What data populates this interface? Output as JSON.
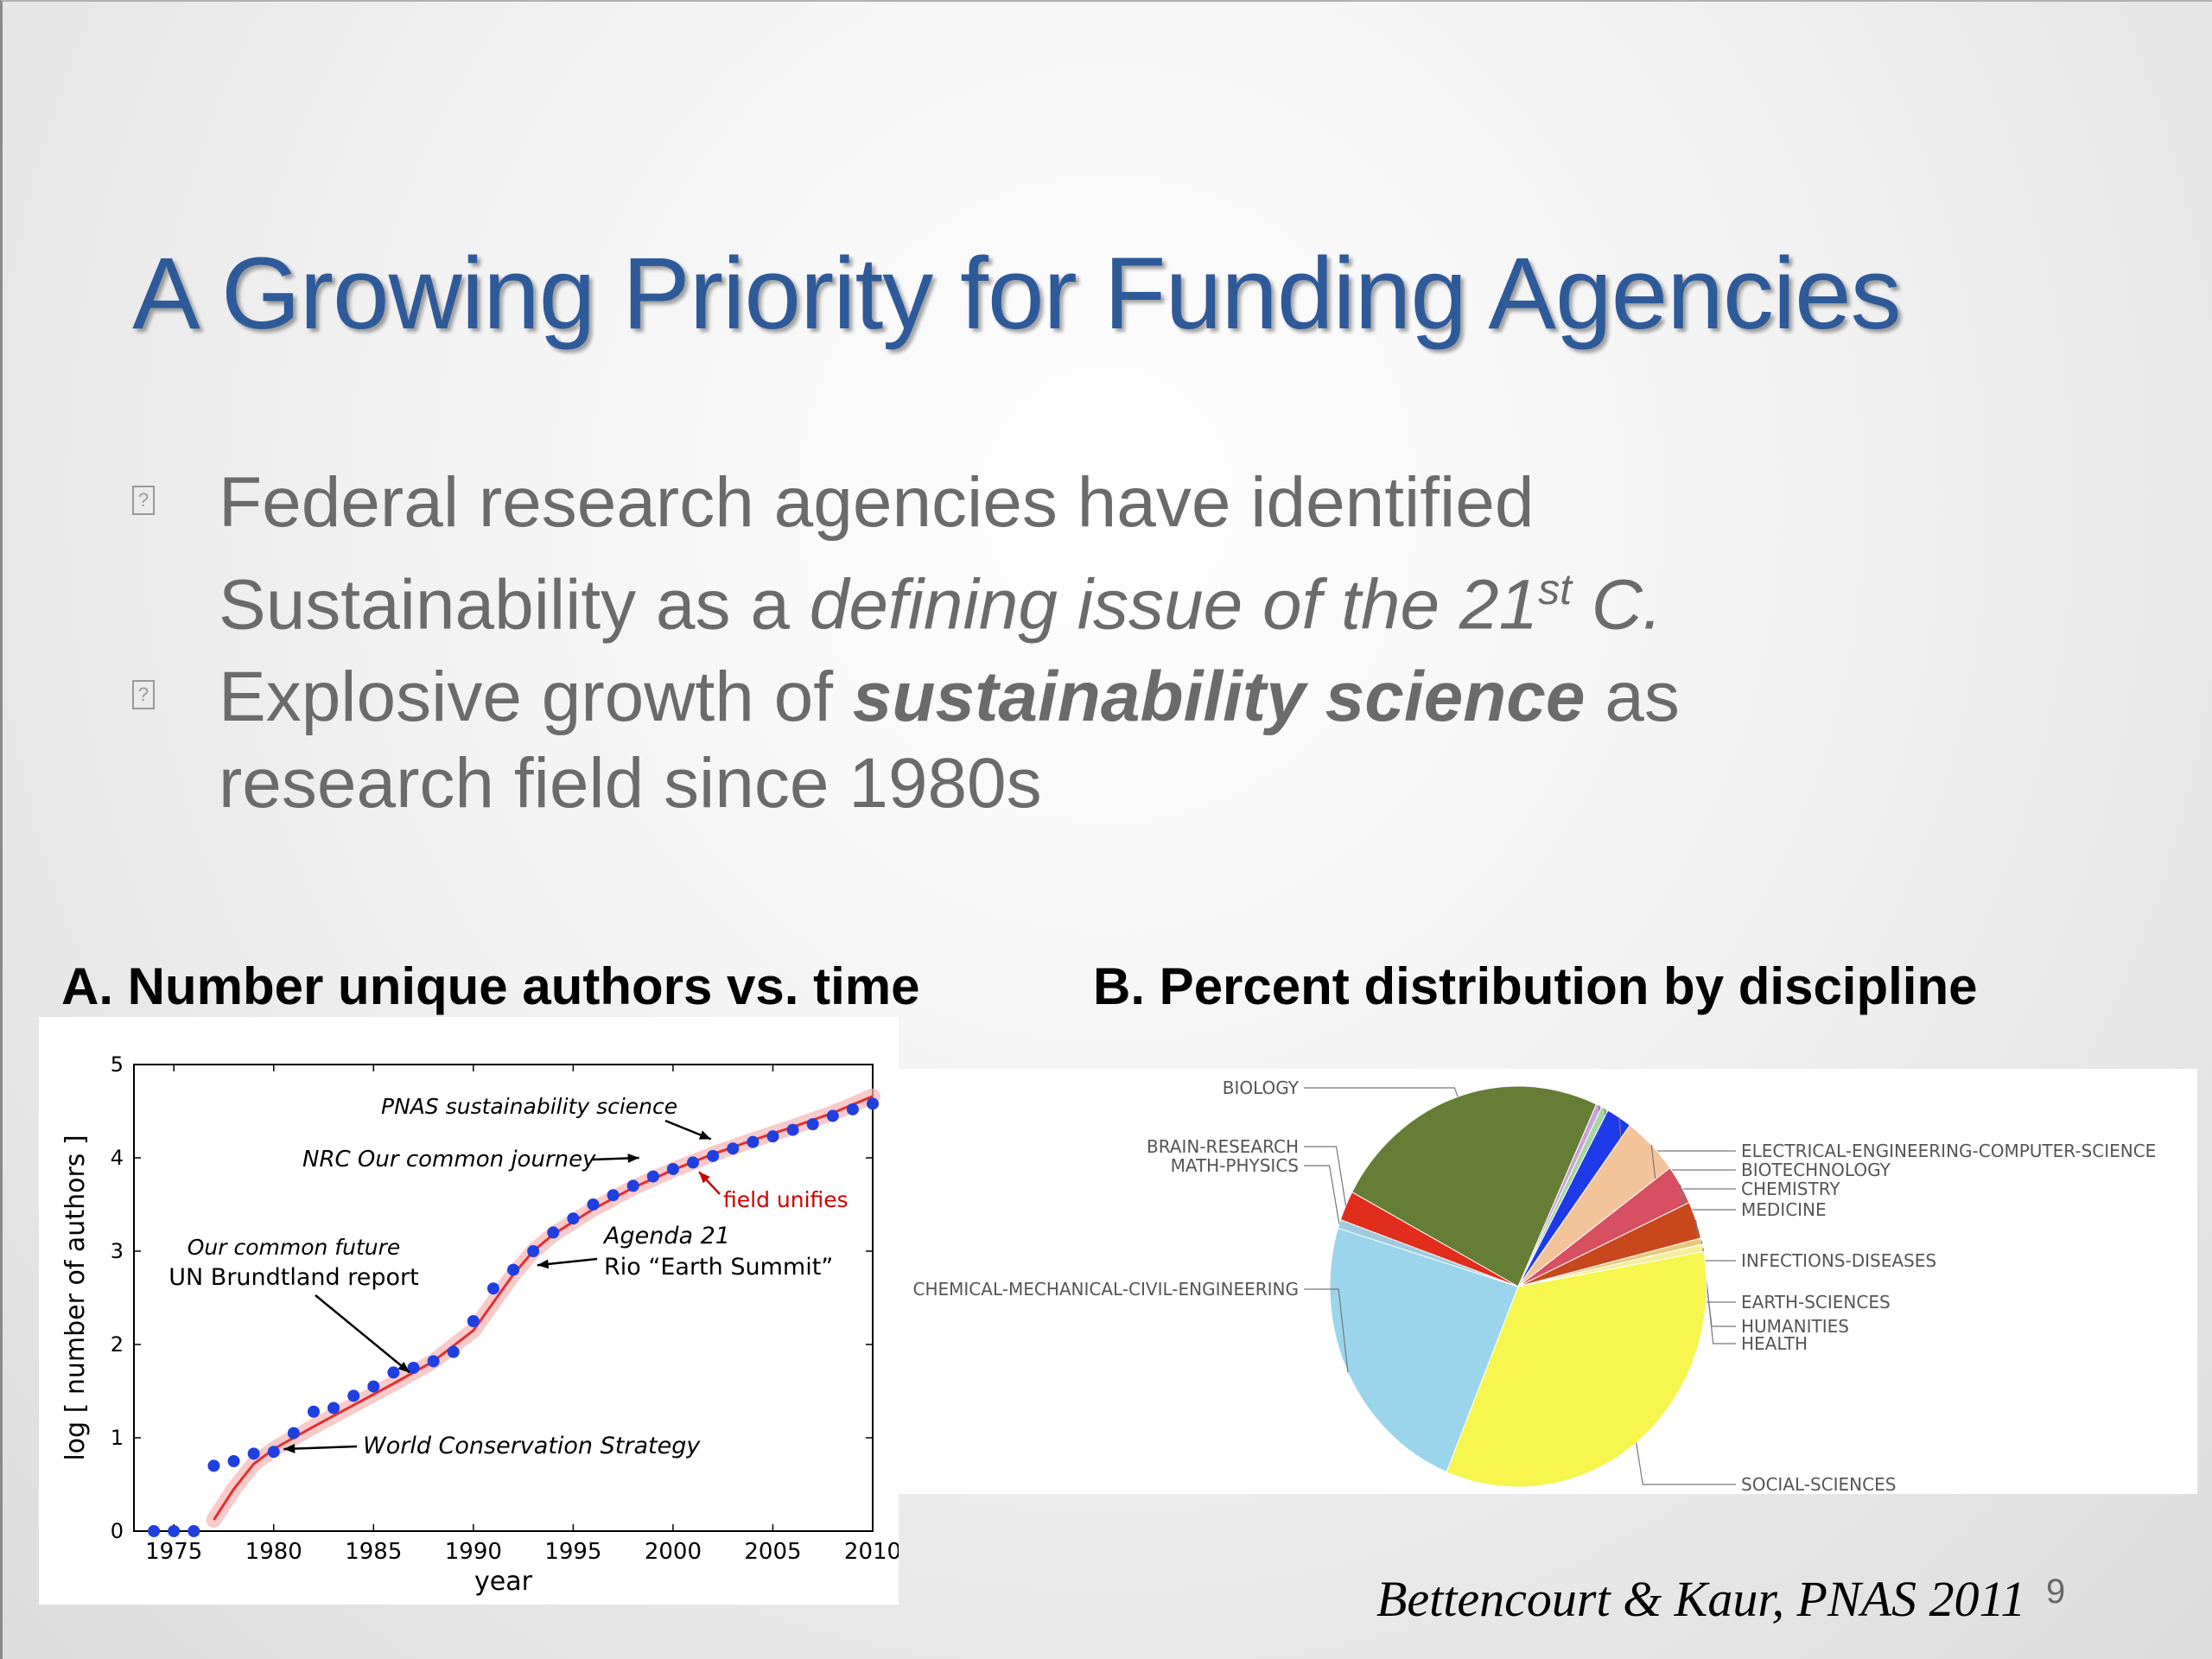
{
  "slide": {
    "title": "A Growing Priority for Funding Agencies",
    "bullets": [
      {
        "marker_icon": "unknown-glyph-icon",
        "line1": "Federal research agencies have identified",
        "line2_plain": "Sustainability as a ",
        "line2_italic": "defining issue of the 21",
        "line2_sup": "st",
        "line2_italic_end": " C."
      },
      {
        "marker_icon": "unknown-glyph-icon",
        "line1_plain": "Explosive growth of ",
        "line1_bold_italic": "sustainability science",
        "line1_end": " as",
        "line2": "research field since 1980s"
      }
    ],
    "marker_glyph": "?",
    "panel_a_label": "A. Number unique authors vs. time",
    "panel_b_label": "B. Percent distribution by discipline",
    "citation": "Bettencourt & Kaur, PNAS 2011",
    "page_number": "9"
  },
  "chart_data": [
    {
      "type": "scatter",
      "title": "A. Number unique authors vs. time",
      "xlabel": "year",
      "ylabel": "log [ number of authors ]",
      "xlim": [
        1973,
        2010
      ],
      "ylim": [
        0,
        5
      ],
      "xticks": [
        1975,
        1980,
        1985,
        1990,
        1995,
        2000,
        2005,
        2010
      ],
      "yticks": [
        0,
        1,
        2,
        3,
        4,
        5
      ],
      "series": [
        {
          "color": "#1f3fe0",
          "points": [
            [
              1974,
              0.0
            ],
            [
              1975,
              0.0
            ],
            [
              1976,
              0.0
            ],
            [
              1977,
              0.7
            ],
            [
              1978,
              0.75
            ],
            [
              1979,
              0.83
            ],
            [
              1980,
              0.85
            ],
            [
              1981,
              1.05
            ],
            [
              1982,
              1.28
            ],
            [
              1983,
              1.32
            ],
            [
              1984,
              1.45
            ],
            [
              1985,
              1.55
            ],
            [
              1986,
              1.7
            ],
            [
              1987,
              1.75
            ],
            [
              1988,
              1.82
            ],
            [
              1989,
              1.92
            ],
            [
              1990,
              2.25
            ],
            [
              1991,
              2.6
            ],
            [
              1992,
              2.8
            ],
            [
              1993,
              3.0
            ],
            [
              1994,
              3.2
            ],
            [
              1995,
              3.35
            ],
            [
              1996,
              3.5
            ],
            [
              1997,
              3.6
            ],
            [
              1998,
              3.7
            ],
            [
              1999,
              3.8
            ],
            [
              2000,
              3.88
            ],
            [
              2001,
              3.95
            ],
            [
              2002,
              4.02
            ],
            [
              2003,
              4.1
            ],
            [
              2004,
              4.17
            ],
            [
              2005,
              4.23
            ],
            [
              2006,
              4.3
            ],
            [
              2007,
              4.36
            ],
            [
              2008,
              4.45
            ],
            [
              2009,
              4.52
            ],
            [
              2010,
              4.58
            ]
          ]
        },
        {
          "color": "#e03030",
          "fit_points": [
            [
              1977,
              0.12
            ],
            [
              1978,
              0.45
            ],
            [
              1979,
              0.72
            ],
            [
              1980,
              0.88
            ],
            [
              1982,
              1.12
            ],
            [
              1984,
              1.35
            ],
            [
              1986,
              1.58
            ],
            [
              1988,
              1.82
            ],
            [
              1990,
              2.15
            ],
            [
              1991,
              2.45
            ],
            [
              1992,
              2.75
            ],
            [
              1993,
              3.0
            ],
            [
              1994,
              3.18
            ],
            [
              1996,
              3.45
            ],
            [
              1998,
              3.68
            ],
            [
              2000,
              3.87
            ],
            [
              2002,
              4.04
            ],
            [
              2004,
              4.19
            ],
            [
              2006,
              4.33
            ],
            [
              2008,
              4.48
            ],
            [
              2010,
              4.66
            ]
          ]
        }
      ],
      "annotations": [
        {
          "text": "World Conservation Strategy",
          "style": "italic",
          "x": 1980
        },
        {
          "text": "Our common future",
          "style": "italic",
          "x": 1987
        },
        {
          "text": "UN Brundtland report",
          "style": "normal",
          "x": 1987
        },
        {
          "text": "Agenda 21",
          "style": "italic",
          "x": 1992
        },
        {
          "text": "Rio “Earth Summit”",
          "style": "normal",
          "x": 1992
        },
        {
          "text": "NRC Our common journey",
          "style": "italic",
          "x": 1999
        },
        {
          "text": "PNAS sustainability science",
          "style": "italic",
          "x": 2000
        },
        {
          "text": "field unifies",
          "style": "normal",
          "color": "#cc0000",
          "x": 2000
        }
      ]
    },
    {
      "type": "pie",
      "title": "B. Percent distribution by discipline",
      "legend": "callout-labels",
      "slices": [
        {
          "label": "BIOLOGY",
          "value": 24.0,
          "color": "#667d35"
        },
        {
          "label": "ELECTRICAL-ENGINEERING-COMPUTER-SCIENCE",
          "value": 0.5,
          "color": "#c9a0dc"
        },
        {
          "label": "BIOTECHNOLOGY",
          "value": 0.6,
          "color": "#a6d7a0"
        },
        {
          "label": "CHEMISTRY",
          "value": 2.2,
          "color": "#1f3ae8"
        },
        {
          "label": "MEDICINE",
          "value": 4.8,
          "color": "#f3c39a"
        },
        {
          "label": "INFECTIONS-DISEASES",
          "value": 3.2,
          "color": "#d65061"
        },
        {
          "label": "EARTH-SCIENCES",
          "value": 3.0,
          "color": "#c6481c"
        },
        {
          "label": "HUMANITIES",
          "value": 0.5,
          "color": "#e8c97a"
        },
        {
          "label": "HEALTH",
          "value": 0.6,
          "color": "#f5ee9a"
        },
        {
          "label": "SOCIAL-SCIENCES",
          "value": 34.0,
          "color": "#f6f64f"
        },
        {
          "label": "CHEMICAL-MECHANICAL-CIVIL-ENGINEERING",
          "value": 23.5,
          "color": "#9ad5ec"
        },
        {
          "label": "MATH-PHYSICS",
          "value": 0.7,
          "color": "#a1c9dc"
        },
        {
          "label": "BRAIN-RESEARCH",
          "value": 2.4,
          "color": "#e02d1c"
        }
      ]
    }
  ]
}
